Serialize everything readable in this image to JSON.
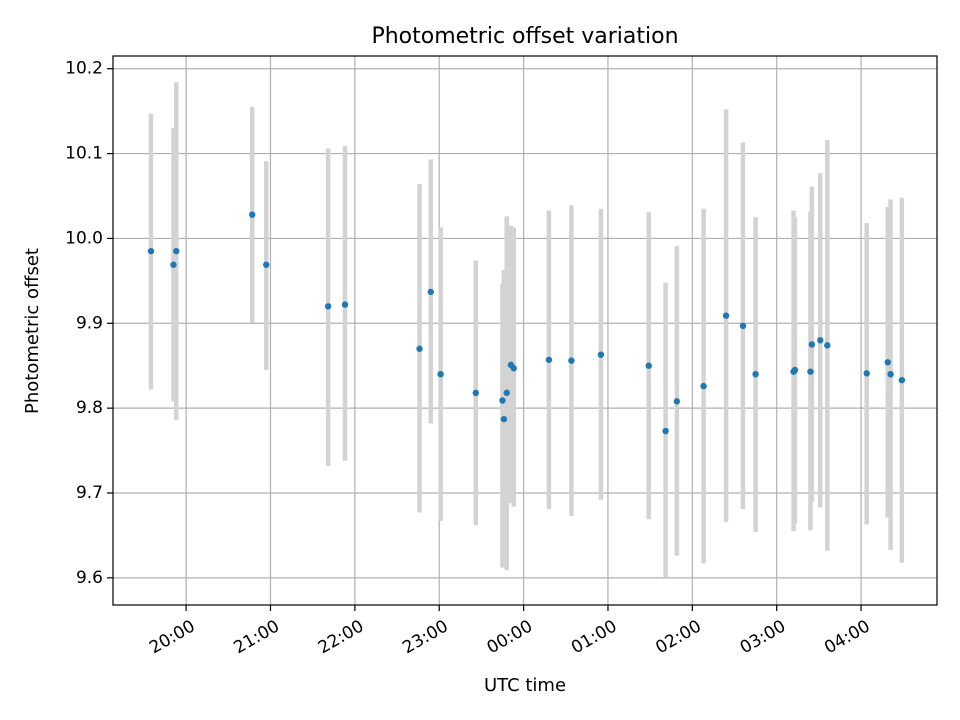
{
  "chart_data": {
    "type": "scatter",
    "title": "Photometric offset variation",
    "xlabel": "UTC time",
    "ylabel": "Photometric offset",
    "x_ticks": [
      "20:00",
      "21:00",
      "22:00",
      "23:00",
      "00:00",
      "01:00",
      "02:00",
      "03:00",
      "04:00"
    ],
    "y_ticks": [
      "9.6",
      "9.7",
      "9.8",
      "9.9",
      "10.0",
      "10.1",
      "10.2"
    ],
    "xlim": [
      "19:08",
      "04:54"
    ],
    "ylim": [
      9.568,
      10.215
    ],
    "grid": true,
    "colors": {
      "point": "#1f77b4",
      "errorbar": "#d3d3d3",
      "grid": "#b0b0b0"
    },
    "points": [
      {
        "x": "19:35",
        "y": 9.985,
        "low": 9.822,
        "high": 10.147
      },
      {
        "x": "19:51",
        "y": 9.969,
        "low": 9.808,
        "high": 10.13
      },
      {
        "x": "19:53",
        "y": 9.985,
        "low": 9.786,
        "high": 10.184
      },
      {
        "x": "20:47",
        "y": 10.028,
        "low": 9.901,
        "high": 10.155
      },
      {
        "x": "20:57",
        "y": 9.969,
        "low": 9.845,
        "high": 10.091
      },
      {
        "x": "21:41",
        "y": 9.92,
        "low": 9.732,
        "high": 10.106
      },
      {
        "x": "21:53",
        "y": 9.922,
        "low": 9.738,
        "high": 10.109
      },
      {
        "x": "22:46",
        "y": 9.87,
        "low": 9.677,
        "high": 10.064
      },
      {
        "x": "22:54",
        "y": 9.937,
        "low": 9.782,
        "high": 10.093
      },
      {
        "x": "23:01",
        "y": 9.84,
        "low": 9.667,
        "high": 10.013
      },
      {
        "x": "23:26",
        "y": 9.818,
        "low": 9.662,
        "high": 9.974
      },
      {
        "x": "23:45",
        "y": 9.809,
        "low": 9.612,
        "high": 9.947
      },
      {
        "x": "23:46",
        "y": 9.787,
        "low": 9.613,
        "high": 9.963
      },
      {
        "x": "23:48",
        "y": 9.818,
        "low": 9.609,
        "high": 10.026
      },
      {
        "x": "23:51",
        "y": 9.851,
        "low": 9.688,
        "high": 10.015
      },
      {
        "x": "23:53",
        "y": 9.847,
        "low": 9.684,
        "high": 10.013
      },
      {
        "x": "00:18",
        "y": 9.857,
        "low": 9.681,
        "high": 10.033
      },
      {
        "x": "00:34",
        "y": 9.856,
        "low": 9.673,
        "high": 10.039
      },
      {
        "x": "00:55",
        "y": 9.863,
        "low": 9.692,
        "high": 10.035
      },
      {
        "x": "01:29",
        "y": 9.85,
        "low": 9.669,
        "high": 10.031
      },
      {
        "x": "01:41",
        "y": 9.773,
        "low": 9.601,
        "high": 9.948
      },
      {
        "x": "01:49",
        "y": 9.808,
        "low": 9.626,
        "high": 9.991
      },
      {
        "x": "02:08",
        "y": 9.826,
        "low": 9.617,
        "high": 10.035
      },
      {
        "x": "02:24",
        "y": 9.909,
        "low": 9.666,
        "high": 10.152
      },
      {
        "x": "02:36",
        "y": 9.897,
        "low": 9.681,
        "high": 10.113
      },
      {
        "x": "02:45",
        "y": 9.84,
        "low": 9.654,
        "high": 10.025
      },
      {
        "x": "03:12",
        "y": 9.843,
        "low": 9.655,
        "high": 10.033
      },
      {
        "x": "03:13",
        "y": 9.845,
        "low": 9.664,
        "high": 10.025
      },
      {
        "x": "03:24",
        "y": 9.843,
        "low": 9.656,
        "high": 10.032
      },
      {
        "x": "03:25",
        "y": 9.875,
        "low": 9.69,
        "high": 10.061
      },
      {
        "x": "03:31",
        "y": 9.88,
        "low": 9.683,
        "high": 10.077
      },
      {
        "x": "03:36",
        "y": 9.874,
        "low": 9.632,
        "high": 10.116
      },
      {
        "x": "04:04",
        "y": 9.841,
        "low": 9.663,
        "high": 10.018
      },
      {
        "x": "04:19",
        "y": 9.854,
        "low": 9.671,
        "high": 10.037
      },
      {
        "x": "04:21",
        "y": 9.84,
        "low": 9.633,
        "high": 10.046
      },
      {
        "x": "04:29",
        "y": 9.833,
        "low": 9.618,
        "high": 10.048
      }
    ]
  }
}
